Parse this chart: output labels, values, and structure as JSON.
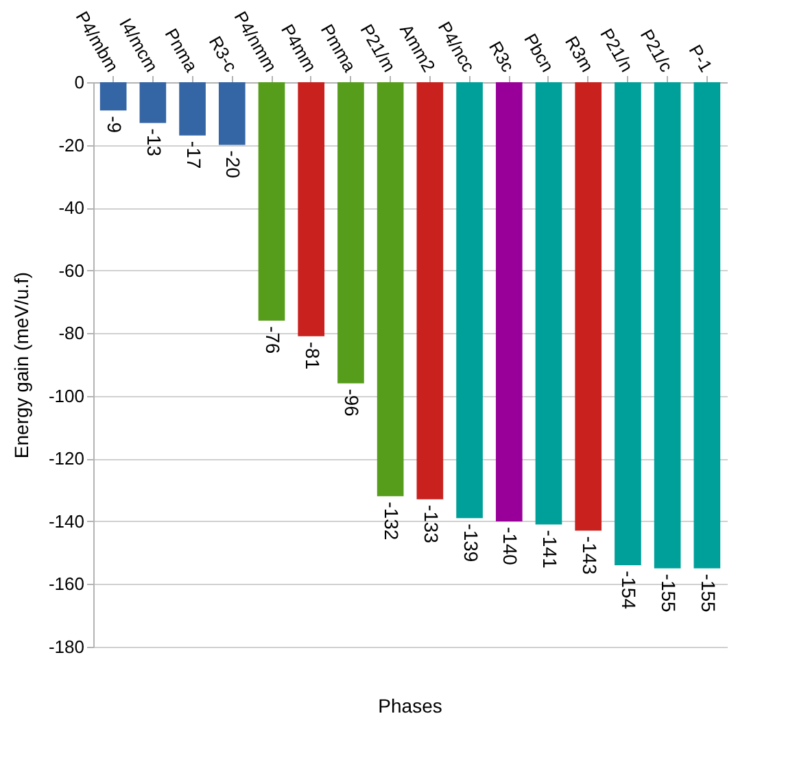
{
  "chart_data": {
    "type": "bar",
    "xlabel": "Phases",
    "ylabel": "Energy gain (meV/u.f)",
    "categories": [
      "P4/mbm",
      "I4/mcm",
      "Pnma",
      "R3-c",
      "P4/nmm",
      "P4mm",
      "Pmma",
      "P21/m",
      "Amm2",
      "P4/ncc",
      "R3c",
      "Pbcn",
      "R3m",
      "P21/n",
      "P21/c",
      "P-1"
    ],
    "values": [
      -9,
      -13,
      -17,
      -20,
      -76,
      -81,
      -96,
      -132,
      -133,
      -139,
      -140,
      -141,
      -143,
      -154,
      -155,
      -155
    ],
    "colors": [
      "#3465a4",
      "#3465a4",
      "#3465a4",
      "#3465a4",
      "#579d1c",
      "#c9211e",
      "#579d1c",
      "#579d1c",
      "#c9211e",
      "#00a09a",
      "#990099",
      "#00a09a",
      "#c9211e",
      "#00a09a",
      "#00a09a",
      "#00a09a"
    ],
    "ylim": [
      -180,
      0
    ],
    "yticks": [
      0,
      -20,
      -40,
      -60,
      -80,
      -100,
      -120,
      -140,
      -160,
      -180
    ],
    "grid": "y",
    "data_labels": true
  }
}
